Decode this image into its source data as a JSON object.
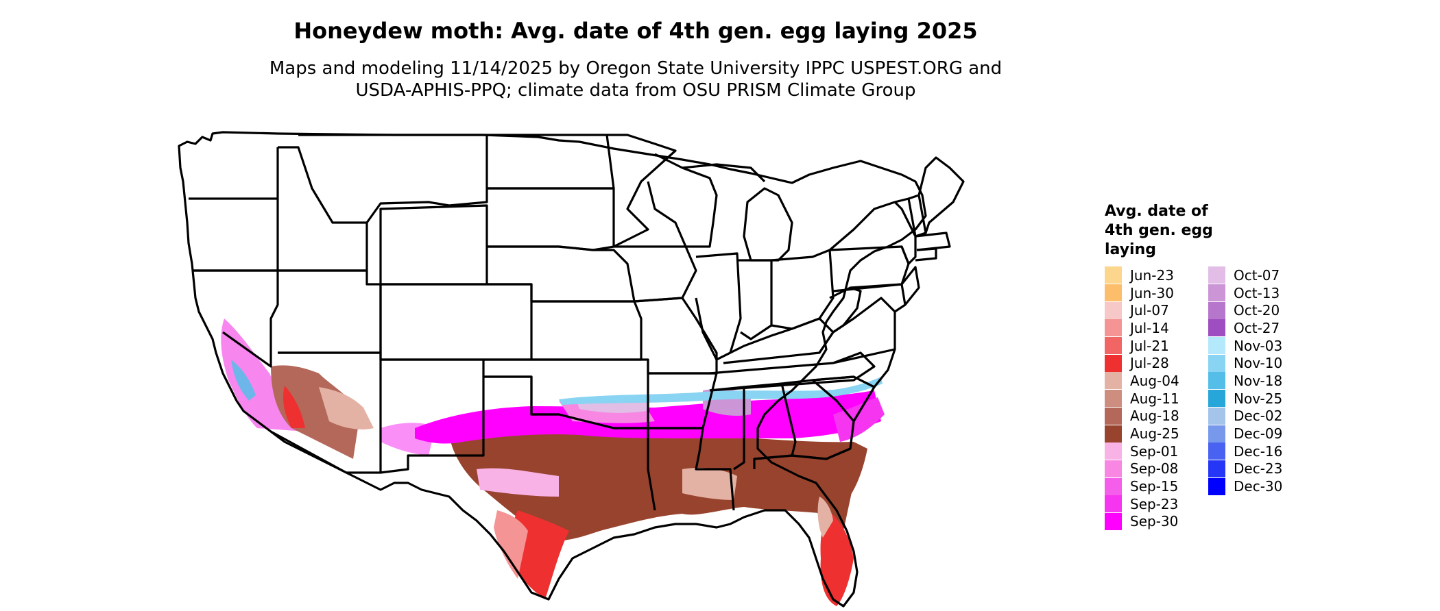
{
  "title": "Honeydew moth: Avg. date of 4th gen. egg laying 2025",
  "subtitle": {
    "line1": "Maps and modeling 11/14/2025 by Oregon State University IPPC USPEST.ORG and",
    "line2": "USDA-APHIS-PPQ; climate data from OSU PRISM Climate Group"
  },
  "legend": {
    "title": "Avg. date of 4th gen. egg laying",
    "columns": [
      [
        {
          "label": "Jun-23",
          "color": "#FDD68E"
        },
        {
          "label": "Jun-30",
          "color": "#FDBE6B"
        },
        {
          "label": "Jul-07",
          "color": "#F7C8C8"
        },
        {
          "label": "Jul-14",
          "color": "#F49494"
        },
        {
          "label": "Jul-21",
          "color": "#F26565"
        },
        {
          "label": "Jul-28",
          "color": "#EE3030"
        },
        {
          "label": "Aug-04",
          "color": "#E4B2A4"
        },
        {
          "label": "Aug-11",
          "color": "#CD8E80"
        },
        {
          "label": "Aug-18",
          "color": "#B4685A"
        },
        {
          "label": "Aug-25",
          "color": "#98432E"
        },
        {
          "label": "Sep-01",
          "color": "#F9B2E6"
        },
        {
          "label": "Sep-08",
          "color": "#F887E4"
        },
        {
          "label": "Sep-15",
          "color": "#F55EEA"
        },
        {
          "label": "Sep-23",
          "color": "#F535F0"
        },
        {
          "label": "Sep-30",
          "color": "#FF00FF"
        }
      ],
      [
        {
          "label": "Oct-07",
          "color": "#E2BEE6"
        },
        {
          "label": "Oct-13",
          "color": "#CC96D6"
        },
        {
          "label": "Oct-20",
          "color": "#B676CB"
        },
        {
          "label": "Oct-27",
          "color": "#9E4EC0"
        },
        {
          "label": "Nov-03",
          "color": "#B4E8FB"
        },
        {
          "label": "Nov-10",
          "color": "#88D4F2"
        },
        {
          "label": "Nov-18",
          "color": "#55BEE8"
        },
        {
          "label": "Nov-25",
          "color": "#27A6DA"
        },
        {
          "label": "Dec-02",
          "color": "#A4C4EA"
        },
        {
          "label": "Dec-09",
          "color": "#7898EC"
        },
        {
          "label": "Dec-16",
          "color": "#4A62F2"
        },
        {
          "label": "Dec-23",
          "color": "#2636F6"
        },
        {
          "label": "Dec-30",
          "color": "#0000FF"
        }
      ]
    ]
  }
}
